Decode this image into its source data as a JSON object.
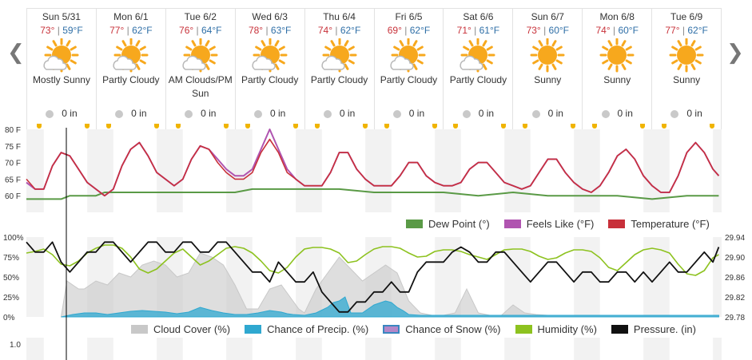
{
  "nav": {
    "prev_icon": "chevron-left-icon",
    "next_icon": "chevron-right-icon"
  },
  "days": [
    {
      "name": "Sun 5/31",
      "hi": "73°",
      "lo": "59°F",
      "condition": "Mostly Sunny",
      "icon": "partly-sunny-icon",
      "precip": "0 in"
    },
    {
      "name": "Mon 6/1",
      "hi": "77°",
      "lo": "62°F",
      "condition": "Partly Cloudy",
      "icon": "partly-cloudy-icon",
      "precip": "0 in"
    },
    {
      "name": "Tue 6/2",
      "hi": "76°",
      "lo": "64°F",
      "condition": "AM Clouds/PM Sun",
      "icon": "partly-cloudy-icon",
      "precip": "0 in"
    },
    {
      "name": "Wed 6/3",
      "hi": "78°",
      "lo": "63°F",
      "condition": "Partly Cloudy",
      "icon": "partly-cloudy-icon",
      "precip": "0 in"
    },
    {
      "name": "Thu 6/4",
      "hi": "74°",
      "lo": "62°F",
      "condition": "Partly Cloudy",
      "icon": "partly-cloudy-icon",
      "precip": "0 in"
    },
    {
      "name": "Fri 6/5",
      "hi": "69°",
      "lo": "62°F",
      "condition": "Partly Cloudy",
      "icon": "partly-cloudy-icon",
      "precip": "0 in"
    },
    {
      "name": "Sat 6/6",
      "hi": "71°",
      "lo": "61°F",
      "condition": "Partly Cloudy",
      "icon": "partly-cloudy-icon",
      "precip": "0 in"
    },
    {
      "name": "Sun 6/7",
      "hi": "73°",
      "lo": "60°F",
      "condition": "Sunny",
      "icon": "sunny-icon",
      "precip": "0 in"
    },
    {
      "name": "Mon 6/8",
      "hi": "74°",
      "lo": "60°F",
      "condition": "Sunny",
      "icon": "sunny-icon",
      "precip": "0 in"
    },
    {
      "name": "Tue 6/9",
      "hi": "77°",
      "lo": "62°F",
      "condition": "Sunny",
      "icon": "sunny-icon",
      "precip": "0 in"
    }
  ],
  "colors": {
    "temperature": "#c8303a",
    "feels_like": "#b054b0",
    "dew_point": "#5a9a46",
    "cloud_cover": "#c8c8c8",
    "precip": "#2fa8d0",
    "snow": "#b487c8",
    "humidity": "#8dc21f",
    "pressure": "#111111",
    "sun": "#f7a81d",
    "cloud": "#b9b9b9"
  },
  "chart_data": [
    {
      "type": "line",
      "x_unit": "hours since Sun 5/31 00:00",
      "y_unit": "°F",
      "ylim": [
        55,
        80
      ],
      "yticks": [
        "60 F",
        "65 F",
        "70 F",
        "75 F",
        "80 F"
      ],
      "series": [
        {
          "name": "Temperature (°F)",
          "color_key": "temperature",
          "x": [
            0,
            3,
            6,
            9,
            12,
            15,
            18,
            21,
            24,
            27,
            30,
            33,
            36,
            39,
            42,
            45,
            48,
            51,
            54,
            57,
            60,
            63,
            66,
            69,
            72,
            75,
            78,
            81,
            84,
            87,
            90,
            93,
            96,
            99,
            102,
            105,
            108,
            111,
            114,
            117,
            120,
            123,
            126,
            129,
            132,
            135,
            138,
            141,
            144,
            147,
            150,
            153,
            156,
            159,
            162,
            165,
            168,
            171,
            174,
            177,
            180,
            183,
            186,
            189,
            192,
            195,
            198,
            201,
            204,
            207,
            210,
            213,
            216,
            219,
            222,
            225,
            228,
            231,
            234,
            237,
            239
          ],
          "y": [
            65,
            62,
            62,
            69,
            73,
            72,
            68,
            64,
            62,
            60,
            62,
            69,
            74,
            76,
            72,
            67,
            65,
            63,
            65,
            71,
            75,
            74,
            70,
            67,
            65,
            65,
            67,
            73,
            77,
            73,
            67,
            65,
            63,
            63,
            63,
            67,
            73,
            73,
            68,
            65,
            63,
            63,
            63,
            66,
            70,
            70,
            66,
            64,
            63,
            63,
            64,
            68,
            70,
            70,
            67,
            64,
            63,
            62,
            63,
            67,
            71,
            71,
            67,
            64,
            62,
            61,
            63,
            67,
            72,
            74,
            71,
            66,
            63,
            61,
            61,
            66,
            73,
            76,
            73,
            68,
            66
          ]
        },
        {
          "name": "Feels Like (°F)",
          "color_key": "feels_like",
          "x": [
            0,
            3,
            6,
            9,
            12,
            15,
            18,
            21,
            24,
            27,
            30,
            33,
            36,
            39,
            42,
            45,
            48,
            51,
            54,
            57,
            60,
            63,
            66,
            69,
            72,
            75,
            78,
            81,
            84,
            87,
            90,
            93,
            96,
            99,
            102,
            105,
            108,
            111,
            114,
            117,
            120,
            123,
            126,
            129,
            132,
            135,
            138,
            141,
            144,
            147,
            150,
            153,
            156,
            159,
            162,
            165,
            168,
            171,
            174,
            177,
            180,
            183,
            186,
            189,
            192,
            195,
            198,
            201,
            204,
            207,
            210,
            213,
            216,
            219,
            222,
            225,
            228,
            231,
            234,
            237,
            239
          ],
          "y": [
            64,
            62,
            62,
            69,
            73,
            72,
            68,
            64,
            62,
            60,
            62,
            69,
            74,
            76,
            72,
            67,
            65,
            63,
            65,
            71,
            75,
            74,
            71,
            68,
            66,
            66,
            68,
            74,
            80,
            74,
            68,
            65,
            63,
            63,
            63,
            67,
            73,
            73,
            68,
            65,
            63,
            63,
            63,
            66,
            70,
            70,
            66,
            64,
            63,
            63,
            64,
            68,
            70,
            70,
            67,
            64,
            63,
            62,
            63,
            67,
            71,
            71,
            67,
            64,
            62,
            61,
            63,
            67,
            72,
            74,
            71,
            66,
            63,
            61,
            61,
            66,
            73,
            76,
            73,
            68,
            66
          ]
        },
        {
          "name": "Dew Point (°)",
          "color_key": "dew_point",
          "x": [
            0,
            12,
            15,
            24,
            27,
            36,
            48,
            60,
            72,
            78,
            84,
            90,
            96,
            108,
            120,
            132,
            144,
            156,
            168,
            180,
            192,
            204,
            216,
            228,
            239
          ],
          "y": [
            59,
            59,
            60,
            60,
            61,
            61,
            61,
            61,
            61,
            62,
            62,
            62,
            62,
            62,
            61,
            61,
            61,
            60,
            61,
            60,
            60,
            60,
            59,
            60,
            60
          ]
        }
      ]
    },
    {
      "type": "area",
      "x_unit": "hours since Sun 5/31 00:00",
      "ylim_left": [
        0,
        100
      ],
      "yticks_left": [
        "0%",
        "25%",
        "50%",
        "75%",
        "100%"
      ],
      "ylim_right": [
        29.78,
        29.94
      ],
      "yticks_right": [
        "29.78",
        "29.82",
        "29.86",
        "29.90",
        "29.94"
      ],
      "series": [
        {
          "name": "Cloud Cover (%)",
          "color_key": "cloud_cover",
          "axis": "left",
          "x": [
            12,
            14,
            16,
            18,
            20,
            24,
            28,
            32,
            36,
            40,
            44,
            48,
            52,
            56,
            60,
            64,
            68,
            72,
            76,
            80,
            84,
            88,
            90,
            92,
            94,
            96,
            100,
            104,
            108,
            112,
            116,
            120,
            124,
            128,
            132,
            136,
            140,
            144,
            148,
            152,
            156,
            160,
            164,
            168,
            172,
            176,
            180,
            184,
            188,
            192,
            196,
            200,
            204,
            208,
            212,
            216,
            220,
            224,
            228,
            232,
            236,
            239
          ],
          "y": [
            0,
            45,
            40,
            35,
            35,
            45,
            40,
            55,
            50,
            65,
            70,
            65,
            50,
            55,
            80,
            75,
            65,
            40,
            10,
            10,
            35,
            40,
            30,
            20,
            10,
            5,
            35,
            55,
            75,
            60,
            45,
            55,
            65,
            55,
            20,
            5,
            2,
            2,
            5,
            35,
            5,
            2,
            2,
            15,
            5,
            3,
            2,
            2,
            2,
            2,
            2,
            2,
            2,
            2,
            2,
            2,
            2,
            2,
            2,
            2,
            2,
            2
          ]
        },
        {
          "name": "Chance of Precip. (%)",
          "color_key": "precip",
          "axis": "left",
          "x": [
            12,
            16,
            20,
            24,
            28,
            32,
            36,
            40,
            44,
            48,
            52,
            56,
            60,
            64,
            68,
            72,
            76,
            80,
            84,
            88,
            90,
            92,
            96,
            100,
            104,
            106,
            108,
            110,
            112,
            116,
            120,
            124,
            126,
            128,
            130,
            132,
            136,
            140,
            144,
            150,
            156,
            160,
            168,
            176,
            184,
            192,
            200,
            208,
            216,
            224,
            232,
            239
          ],
          "y": [
            0,
            3,
            5,
            5,
            3,
            5,
            7,
            8,
            7,
            6,
            4,
            6,
            12,
            8,
            5,
            3,
            3,
            5,
            8,
            6,
            4,
            3,
            2,
            5,
            12,
            18,
            20,
            25,
            5,
            5,
            15,
            20,
            18,
            12,
            8,
            3,
            2,
            2,
            2,
            2,
            2,
            2,
            2,
            2,
            2,
            2,
            2,
            2,
            2,
            2,
            2,
            2
          ]
        },
        {
          "name": "Chance of Snow (%)",
          "color_key": "snow",
          "axis": "left",
          "x": [],
          "y": []
        },
        {
          "name": "Humidity (%)",
          "color_key": "humidity",
          "axis": "left",
          "x": [
            0,
            3,
            6,
            9,
            12,
            15,
            18,
            21,
            24,
            27,
            30,
            33,
            36,
            39,
            42,
            45,
            48,
            51,
            54,
            57,
            60,
            63,
            66,
            69,
            72,
            75,
            78,
            81,
            84,
            87,
            90,
            93,
            96,
            99,
            102,
            105,
            108,
            111,
            114,
            117,
            120,
            123,
            126,
            129,
            132,
            135,
            138,
            141,
            144,
            147,
            150,
            153,
            156,
            159,
            162,
            165,
            168,
            171,
            174,
            177,
            180,
            183,
            186,
            189,
            192,
            195,
            198,
            201,
            204,
            207,
            210,
            213,
            216,
            219,
            222,
            225,
            228,
            231,
            234,
            237,
            239
          ],
          "y": [
            80,
            82,
            85,
            78,
            66,
            64,
            70,
            80,
            86,
            90,
            90,
            86,
            75,
            60,
            55,
            60,
            70,
            80,
            85,
            75,
            65,
            70,
            78,
            86,
            88,
            86,
            80,
            70,
            58,
            55,
            62,
            75,
            85,
            87,
            87,
            85,
            80,
            68,
            70,
            78,
            85,
            88,
            88,
            86,
            80,
            75,
            76,
            82,
            84,
            84,
            82,
            78,
            75,
            72,
            78,
            84,
            85,
            85,
            82,
            76,
            72,
            74,
            80,
            84,
            84,
            82,
            74,
            62,
            58,
            68,
            78,
            84,
            86,
            84,
            80,
            66,
            54,
            52,
            58,
            74,
            78
          ]
        },
        {
          "name": "Pressure. (in)",
          "color_key": "pressure",
          "axis": "right",
          "x": [
            0,
            3,
            6,
            9,
            12,
            15,
            18,
            21,
            24,
            27,
            30,
            33,
            36,
            39,
            42,
            45,
            48,
            51,
            54,
            57,
            60,
            63,
            66,
            69,
            72,
            75,
            78,
            81,
            84,
            87,
            90,
            93,
            96,
            99,
            102,
            105,
            108,
            111,
            114,
            117,
            120,
            123,
            126,
            129,
            132,
            135,
            138,
            141,
            144,
            147,
            150,
            153,
            156,
            159,
            162,
            165,
            168,
            171,
            174,
            177,
            180,
            183,
            186,
            189,
            192,
            195,
            198,
            201,
            204,
            207,
            210,
            213,
            216,
            219,
            222,
            225,
            228,
            231,
            234,
            237,
            239
          ],
          "y": [
            29.93,
            29.91,
            29.91,
            29.93,
            29.89,
            29.87,
            29.89,
            29.91,
            29.91,
            29.93,
            29.93,
            29.91,
            29.89,
            29.91,
            29.93,
            29.93,
            29.91,
            29.91,
            29.93,
            29.93,
            29.91,
            29.91,
            29.93,
            29.93,
            29.91,
            29.89,
            29.87,
            29.87,
            29.85,
            29.89,
            29.87,
            29.85,
            29.85,
            29.87,
            29.83,
            29.81,
            29.79,
            29.79,
            29.81,
            29.81,
            29.83,
            29.83,
            29.85,
            29.83,
            29.83,
            29.87,
            29.89,
            29.89,
            29.89,
            29.91,
            29.92,
            29.91,
            29.89,
            29.89,
            29.91,
            29.91,
            29.89,
            29.87,
            29.85,
            29.87,
            29.89,
            29.89,
            29.87,
            29.85,
            29.87,
            29.87,
            29.85,
            29.85,
            29.87,
            29.87,
            29.85,
            29.87,
            29.85,
            29.87,
            29.89,
            29.87,
            29.87,
            29.89,
            29.91,
            29.89,
            29.92
          ]
        }
      ]
    },
    {
      "type": "line",
      "yticks": [
        "1.0"
      ],
      "series": []
    }
  ]
}
